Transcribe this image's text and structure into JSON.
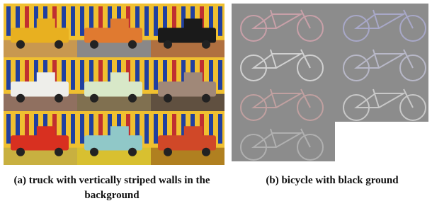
{
  "figure": {
    "panels": [
      {
        "caption": "(a) truck with vertically striped walls in the background"
      },
      {
        "caption": "(b) bicycle with black ground"
      }
    ]
  }
}
